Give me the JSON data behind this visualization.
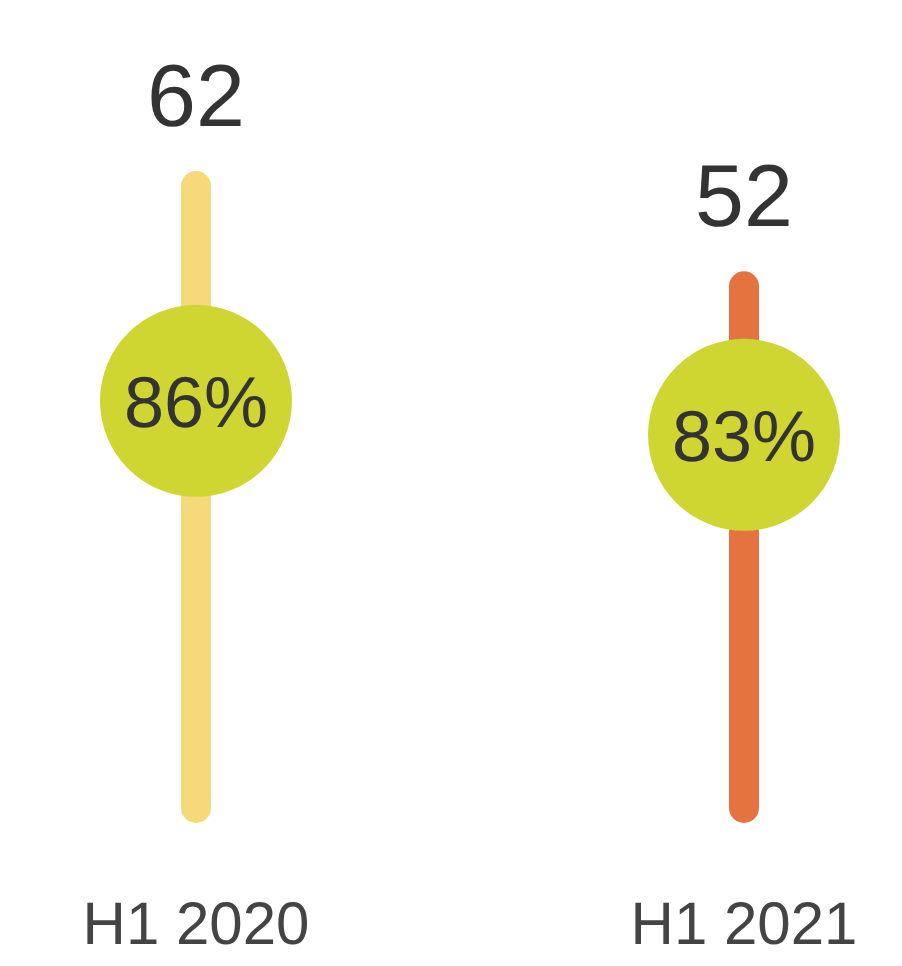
{
  "chart_data": {
    "type": "bar",
    "categories": [
      "H1 2020",
      "H1 2021"
    ],
    "ylim": [
      0,
      62
    ],
    "y2lim": [
      50,
      105
    ],
    "tick_labels": "x",
    "grid": false,
    "data_labels": true,
    "series": [
      {
        "values": [
          62,
          52
        ],
        "colors": [
          "#f5d97a",
          "#e5733f"
        ]
      },
      {
        "type": "scatter",
        "axis": "y2",
        "marker": "circle",
        "color": "#cfd631",
        "values": [
          86,
          83
        ],
        "value_labels": [
          "86%",
          "83%"
        ]
      }
    ]
  }
}
